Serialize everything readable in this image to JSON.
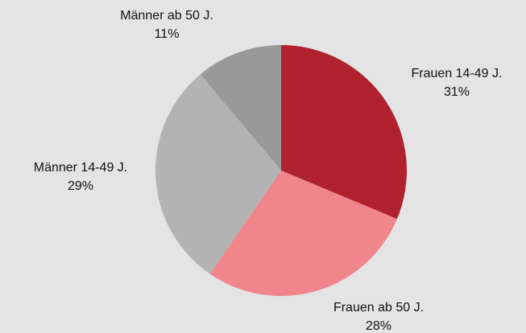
{
  "chart_data": {
    "type": "pie",
    "categories": [
      "Frauen 14-49 J.",
      "Frauen ab 50 J.",
      "Männer 14-49 J.",
      "Männer ab 50 J."
    ],
    "values": [
      31,
      28,
      29,
      11
    ],
    "value_labels": [
      "31%",
      "28%",
      "29%",
      "11%"
    ],
    "colors": [
      "#b0222e",
      "#f0868c",
      "#b3b3b3",
      "#999999"
    ]
  }
}
